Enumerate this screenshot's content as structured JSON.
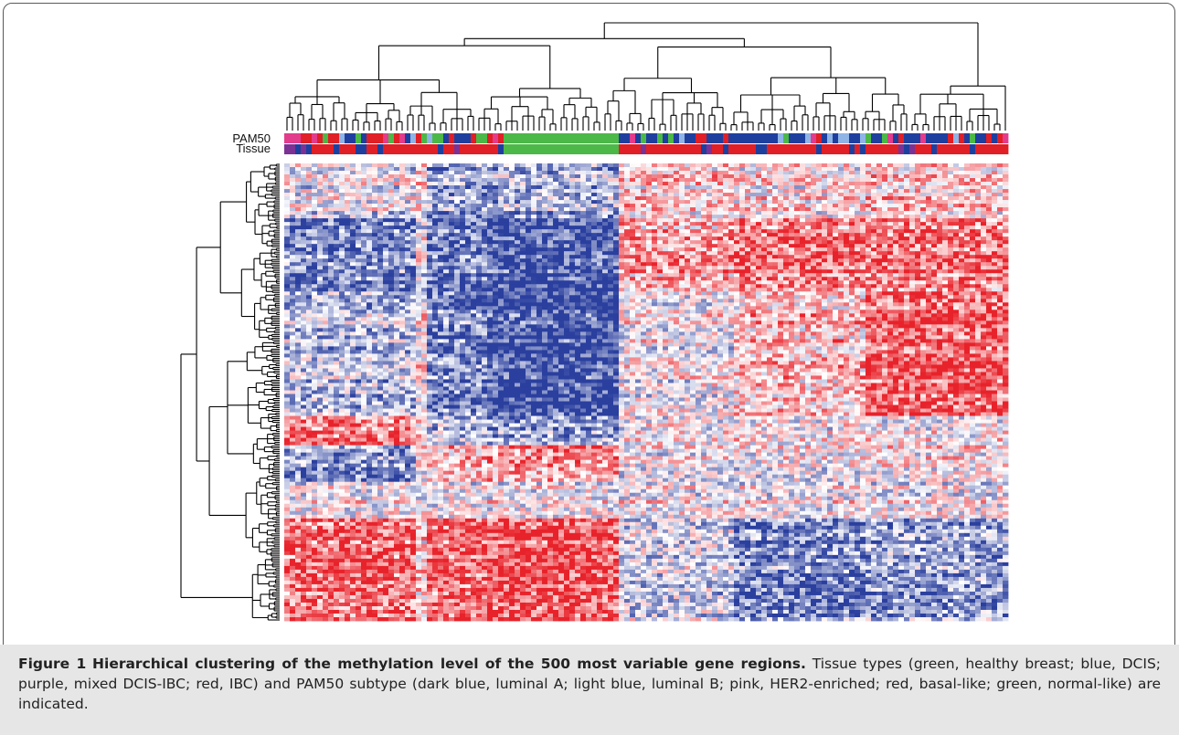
{
  "chart_data": {
    "type": "heatmap",
    "rows": 500,
    "annotation_tracks": [
      {
        "name": "PAM50",
        "legend": [
          {
            "label": "luminal A",
            "color": "#1f3f9f"
          },
          {
            "label": "luminal B",
            "color": "#8fb4e6"
          },
          {
            "label": "HER2-enriched",
            "color": "#e23c8c"
          },
          {
            "label": "basal-like",
            "color": "#e01f26"
          },
          {
            "label": "normal-like",
            "color": "#4cb848"
          }
        ]
      },
      {
        "name": "Tissue",
        "legend": [
          {
            "label": "healthy breast",
            "color": "#4cb848"
          },
          {
            "label": "DCIS",
            "color": "#1f3f9f"
          },
          {
            "label": "mixed DCIS-IBC",
            "color": "#7b3294"
          },
          {
            "label": "IBC",
            "color": "#e01f26"
          }
        ]
      }
    ],
    "color_scale": {
      "low": "#2a3f9e",
      "mid": "#ffffff",
      "high": "#e8222a"
    },
    "row_dendrogram": true,
    "column_dendrogram": true
  },
  "caption": {
    "label": "Figure 1",
    "title": "Hierarchical clustering of the methylation level of the 500 most variable gene regions.",
    "text": "Tissue types (green, healthy breast; blue, DCIS; purple, mixed DCIS-IBC; red, IBC) and PAM50 subtype (dark blue, luminal A; light blue, luminal B; pink, HER2-enriched; red, basal-like; green, normal-like) are indicated."
  }
}
